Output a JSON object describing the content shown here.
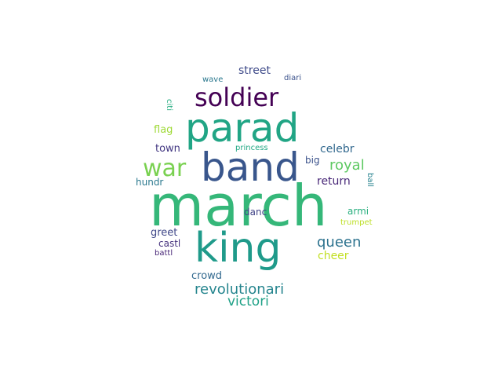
{
  "words": [
    {
      "text": "march",
      "color": "#35b779",
      "size": 72
    },
    {
      "text": "parad",
      "color": "#21a585",
      "size": 50
    },
    {
      "text": "band",
      "color": "#39568c",
      "size": 50
    },
    {
      "text": "king",
      "color": "#1f9a8a",
      "size": 52
    },
    {
      "text": "soldier",
      "color": "#440154",
      "size": 32
    },
    {
      "text": "war",
      "color": "#7ad151",
      "size": 30
    },
    {
      "text": "royal",
      "color": "#5ec962",
      "size": 18
    },
    {
      "text": "queen",
      "color": "#2c728e",
      "size": 18
    },
    {
      "text": "revolutionari",
      "color": "#25858e",
      "size": 18
    },
    {
      "text": "victori",
      "color": "#1fa187",
      "size": 17
    },
    {
      "text": "street",
      "color": "#3e4a89",
      "size": 14
    },
    {
      "text": "flag",
      "color": "#a0da39",
      "size": 13
    },
    {
      "text": "town",
      "color": "#443983",
      "size": 13
    },
    {
      "text": "celebr",
      "color": "#31688e",
      "size": 14
    },
    {
      "text": "big",
      "color": "#3b528b",
      "size": 12
    },
    {
      "text": "return",
      "color": "#482878",
      "size": 14
    },
    {
      "text": "hundr",
      "color": "#2a788e",
      "size": 12
    },
    {
      "text": "danc",
      "color": "#414487",
      "size": 12
    },
    {
      "text": "armi",
      "color": "#29af7f",
      "size": 12
    },
    {
      "text": "greet",
      "color": "#3f4788",
      "size": 13
    },
    {
      "text": "castl",
      "color": "#46327e",
      "size": 12
    },
    {
      "text": "cheer",
      "color": "#c2df23",
      "size": 14
    },
    {
      "text": "crowd",
      "color": "#31688e",
      "size": 13
    },
    {
      "text": "battl",
      "color": "#482677",
      "size": 10
    },
    {
      "text": "trumpet",
      "color": "#bddf26",
      "size": 10
    },
    {
      "text": "ball",
      "color": "#26828e",
      "size": 10
    },
    {
      "text": "wave",
      "color": "#2a788e",
      "size": 10
    },
    {
      "text": "diari",
      "color": "#3b528b",
      "size": 10
    },
    {
      "text": "citi",
      "color": "#27ad81",
      "size": 10
    },
    {
      "text": "princess",
      "color": "#22a884",
      "size": 10
    }
  ]
}
